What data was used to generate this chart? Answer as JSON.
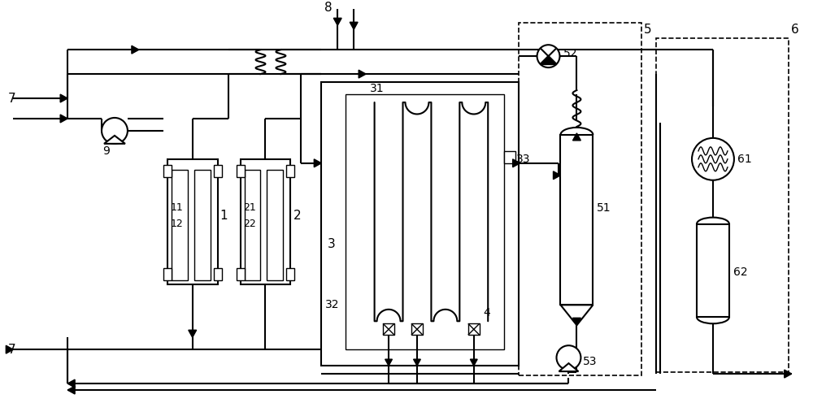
{
  "bg_color": "#ffffff",
  "line_color": "#000000",
  "lw": 1.5,
  "tlw": 1.0,
  "fig_width": 10.0,
  "fig_height": 4.96,
  "dpi": 100
}
